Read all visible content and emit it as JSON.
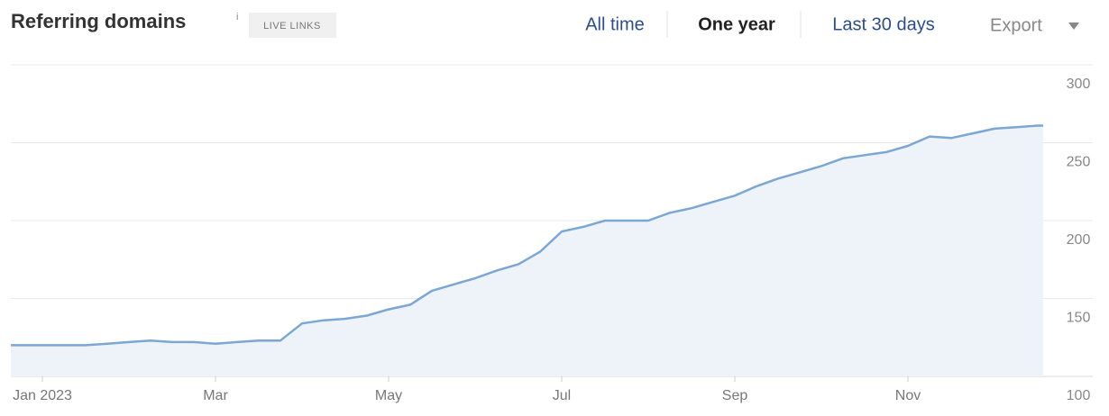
{
  "header": {
    "info": "i",
    "badge": "LIVE LINKS",
    "tabs": [
      "All time",
      "One year",
      "Last 30 days"
    ],
    "active_tab": 1,
    "export": "Export"
  },
  "chart_data": {
    "type": "area",
    "title": "Referring domains",
    "categories": [
      null,
      "Jan 2023",
      null,
      null,
      null,
      null,
      null,
      null,
      null,
      "Mar",
      null,
      null,
      null,
      null,
      null,
      null,
      null,
      "May",
      null,
      null,
      null,
      null,
      null,
      null,
      null,
      "Jul",
      null,
      null,
      null,
      null,
      null,
      null,
      null,
      "Sep",
      null,
      null,
      null,
      null,
      null,
      null,
      null,
      "Nov",
      null,
      null,
      null,
      null,
      null,
      null
    ],
    "values": [
      120,
      120,
      120,
      120,
      121,
      122,
      123,
      122,
      122,
      121,
      122,
      123,
      123,
      134,
      136,
      137,
      139,
      143,
      146,
      155,
      159,
      163,
      168,
      172,
      180,
      193,
      196,
      200,
      200,
      200,
      205,
      208,
      212,
      216,
      222,
      227,
      231,
      235,
      240,
      242,
      244,
      248,
      254,
      253,
      256,
      259,
      260,
      261
    ],
    "color": "#7ba7d4",
    "fill": "#eef3fa",
    "ylim": [
      100,
      300
    ],
    "yticks": [
      100,
      150,
      200,
      250,
      300
    ],
    "grid": true,
    "y_axis_side": "right"
  }
}
